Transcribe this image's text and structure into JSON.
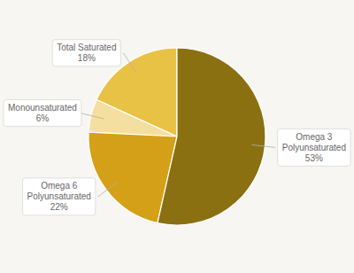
{
  "chart_data": {
    "type": "pie",
    "categories": [
      "Total Saturated",
      "Monounsaturated",
      "Omega 6\nPolyunsaturated",
      "Omega 3\nPolyunsaturated"
    ],
    "values": [
      18,
      6,
      22,
      53
    ],
    "value_labels": [
      "18%",
      "6%",
      "22%",
      "53%"
    ],
    "colors": [
      "#E8C245",
      "#F5DFA0",
      "#D4A017",
      "#8B7012"
    ],
    "data_labels": true
  }
}
